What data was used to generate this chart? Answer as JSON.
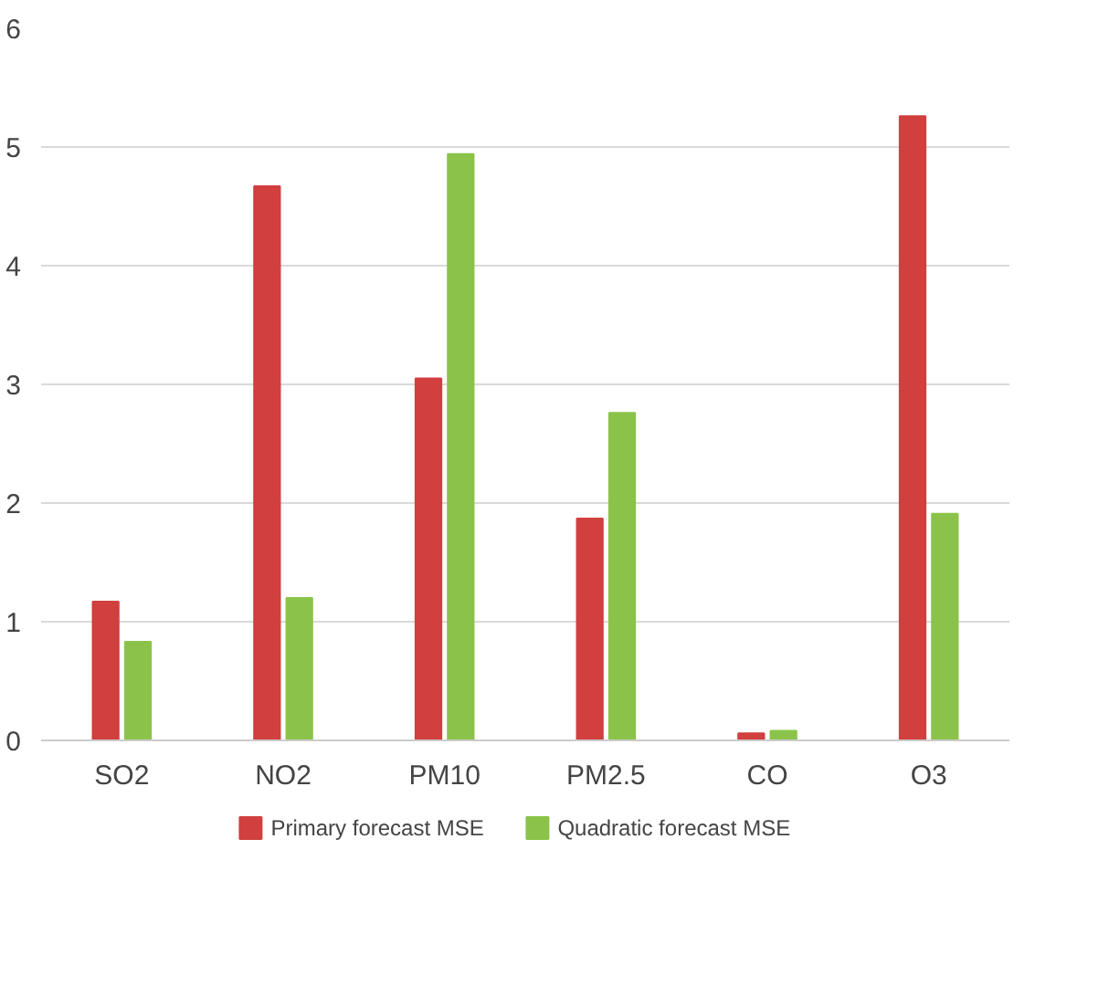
{
  "chart_data": {
    "type": "bar",
    "categories": [
      "SO2",
      "NO2",
      "PM10",
      "PM2.5",
      "CO",
      "O3"
    ],
    "series": [
      {
        "name": "Primary forecast MSE",
        "color": "#d13f3f",
        "values": [
          1.17,
          4.67,
          3.05,
          1.87,
          0.06,
          5.26
        ]
      },
      {
        "name": "Quadratic forecast MSE",
        "color": "#8bc34a",
        "values": [
          0.83,
          1.2,
          4.94,
          2.76,
          0.08,
          1.91
        ]
      }
    ],
    "ylim": [
      0,
      6
    ],
    "yticks": [
      0,
      1,
      2,
      3,
      4,
      5,
      6
    ],
    "grid": "y",
    "legend": "bottom"
  }
}
